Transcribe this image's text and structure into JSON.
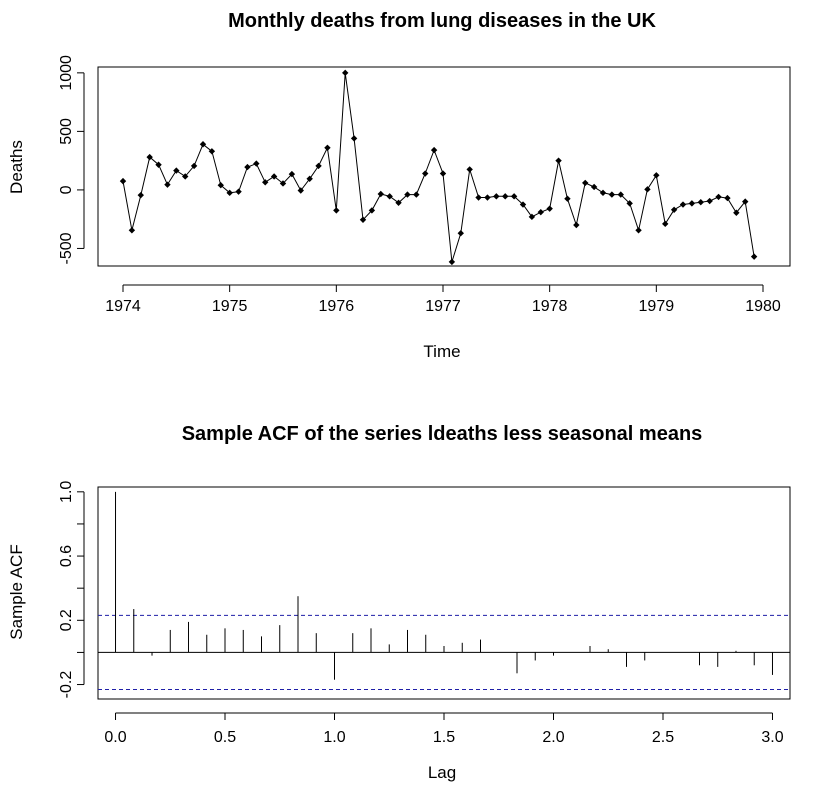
{
  "chart_data": [
    {
      "type": "line",
      "title": "Monthly deaths from lung diseases in the UK",
      "xlabel": "Time",
      "ylabel": "Deaths",
      "xlim": [
        1974,
        1980
      ],
      "ylim": [
        -650,
        1050
      ],
      "xticks": [
        1974,
        1975,
        1976,
        1977,
        1978,
        1979,
        1980
      ],
      "yticks": [
        -500,
        0,
        500,
        1000
      ],
      "x_start": 1974,
      "x_step": 0.0833333,
      "values": [
        75,
        -345,
        -45,
        280,
        215,
        45,
        165,
        115,
        205,
        390,
        330,
        40,
        -25,
        -15,
        195,
        225,
        65,
        115,
        55,
        135,
        -5,
        95,
        205,
        360,
        -175,
        1000,
        440,
        -255,
        -175,
        -35,
        -55,
        -110,
        -40,
        -40,
        140,
        340,
        140,
        -615,
        -370,
        175,
        -65,
        -65,
        -55,
        -55,
        -55,
        -125,
        -230,
        -190,
        -160,
        250,
        -75,
        -300,
        60,
        25,
        -25,
        -40,
        -40,
        -115,
        -345,
        5,
        125,
        -290,
        -170,
        -125,
        -115,
        -105,
        -95,
        -60,
        -70,
        -195,
        -100,
        -570
      ]
    },
    {
      "type": "bar",
      "title": "Sample ACF of the series ldeaths less seasonal means",
      "xlabel": "Lag",
      "ylabel": "Sample ACF",
      "xlim": [
        -0.08,
        3.08
      ],
      "ylim": [
        -0.29,
        1.03
      ],
      "xticks": [
        0.0,
        0.5,
        1.0,
        1.5,
        2.0,
        2.5,
        3.0
      ],
      "yticks": [
        -0.2,
        0.2,
        0.6,
        1.0
      ],
      "confidence_bounds": [
        0.231,
        -0.231
      ],
      "lag_step": 0.0833333,
      "values": [
        1.0,
        0.27,
        -0.02,
        0.14,
        0.19,
        0.11,
        0.15,
        0.14,
        0.1,
        0.17,
        0.35,
        0.12,
        -0.17,
        0.12,
        0.15,
        0.05,
        0.14,
        0.11,
        0.04,
        0.06,
        0.08,
        0.0,
        -0.13,
        -0.05,
        -0.02,
        0.0,
        0.04,
        0.02,
        -0.09,
        -0.05,
        0.0,
        0.0,
        -0.08,
        -0.09,
        0.01,
        -0.08,
        -0.14
      ]
    }
  ]
}
